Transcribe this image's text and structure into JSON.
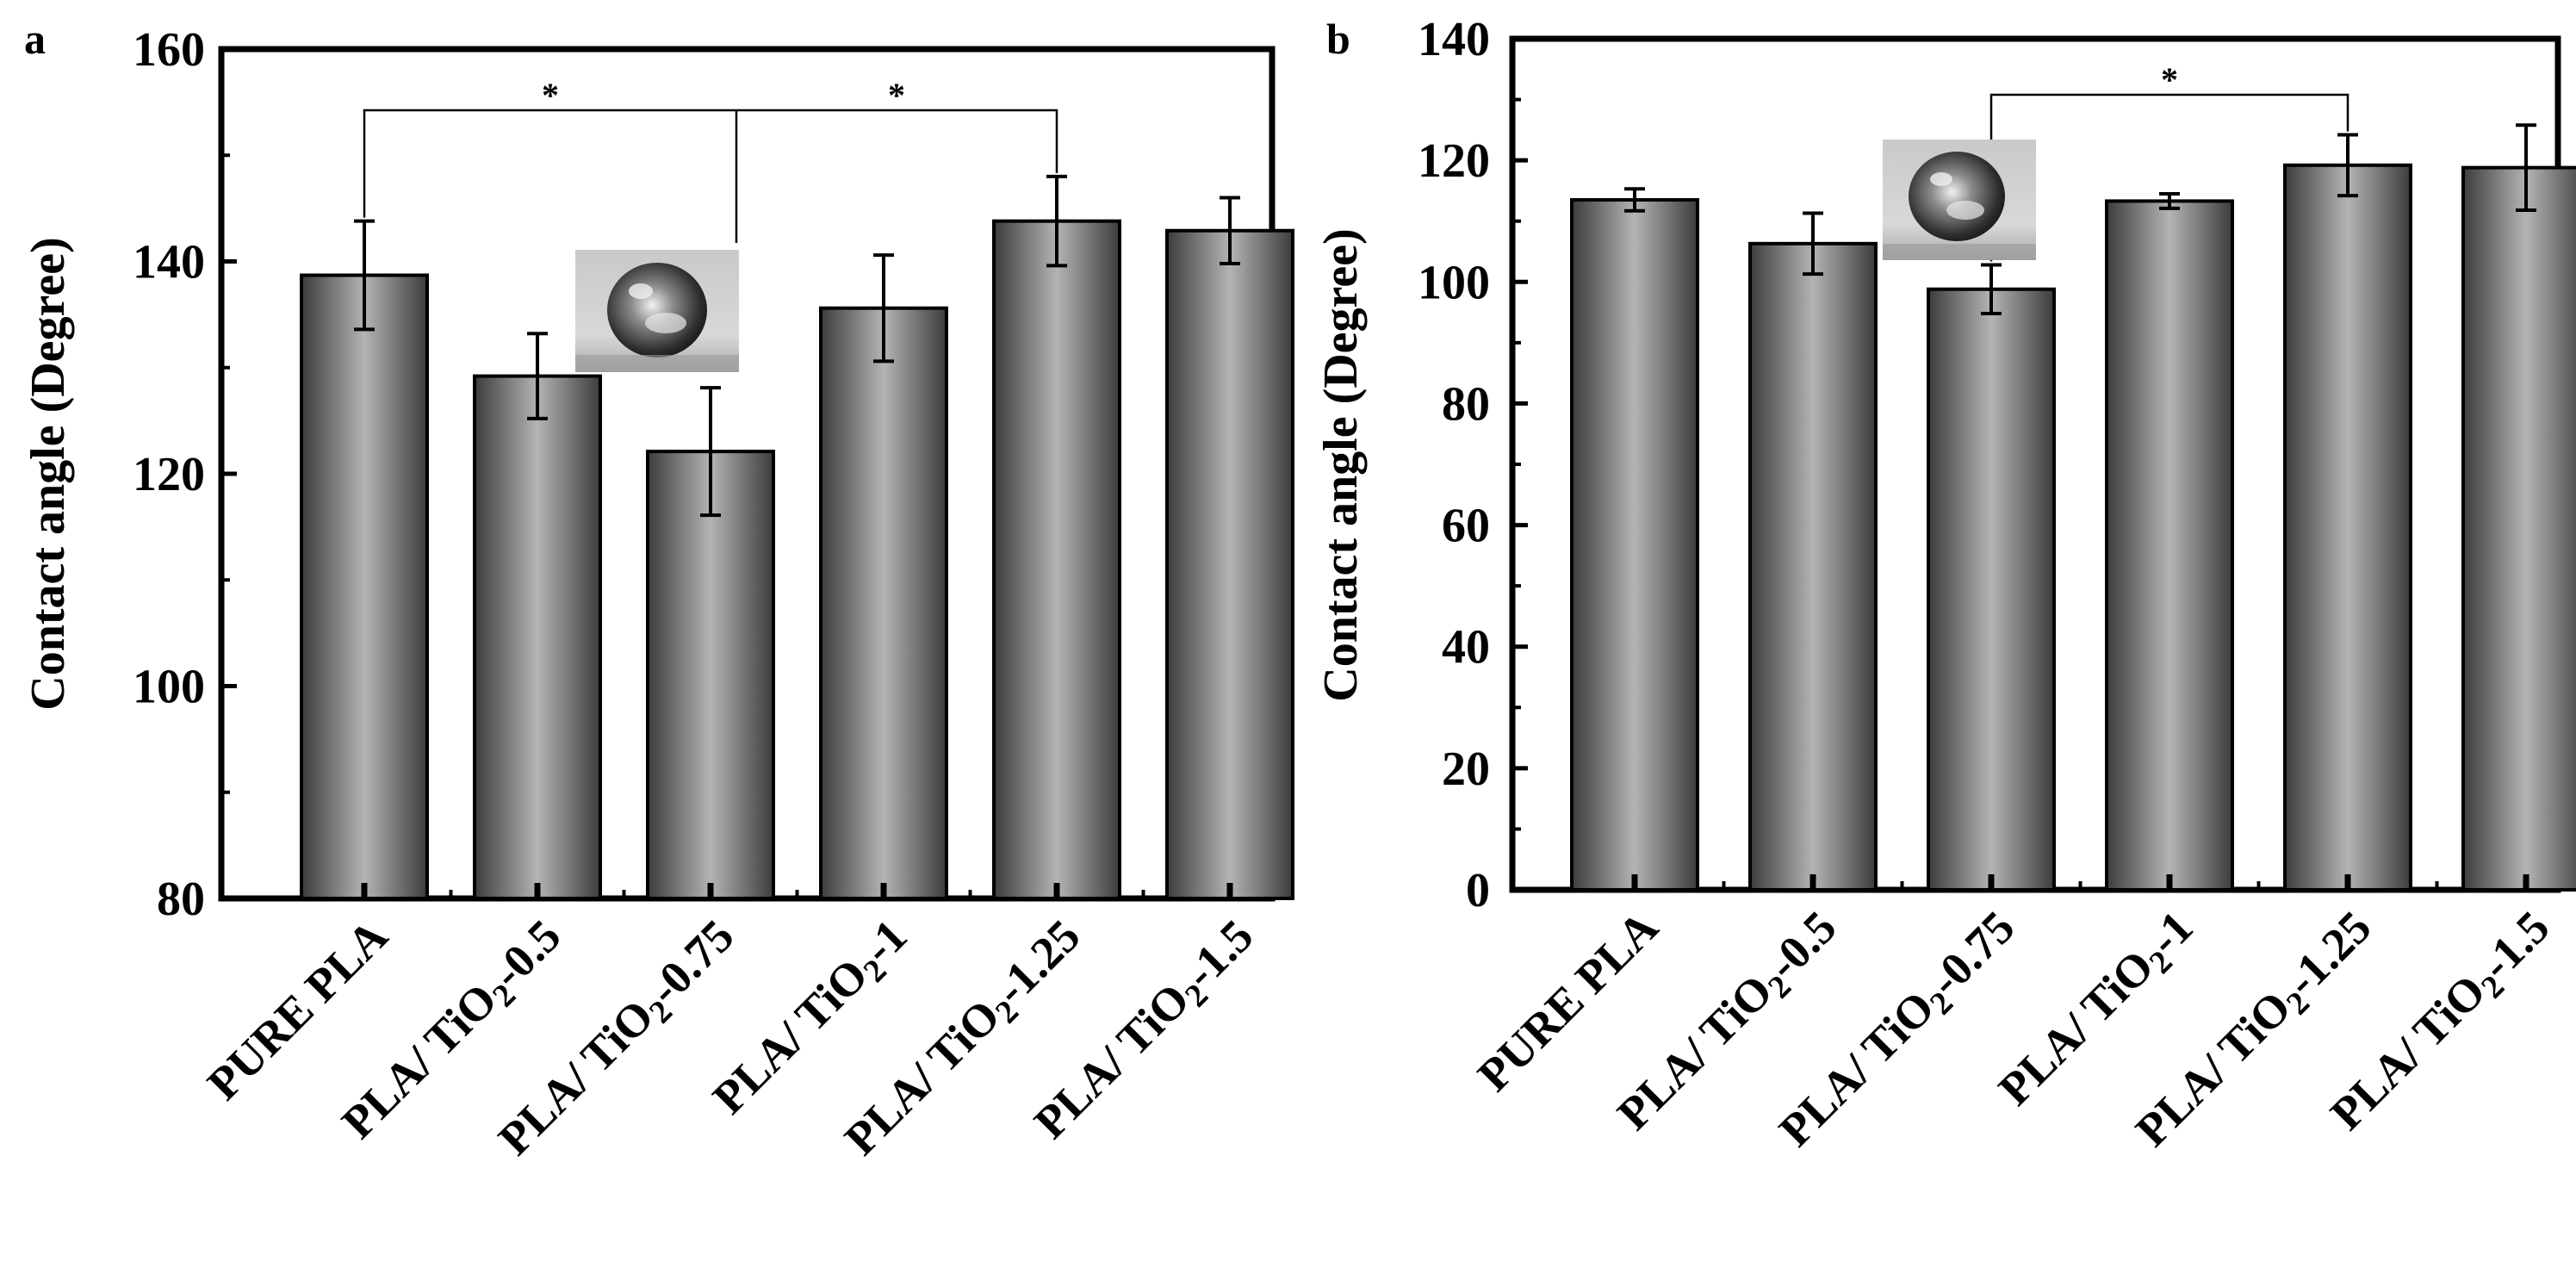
{
  "colors": {
    "bar_dark": "#3c3c3c",
    "bar_light": "#b4b4b4",
    "axis": "#000000",
    "background": "#ffffff"
  },
  "chart_data": [
    {
      "panel": "a",
      "type": "bar",
      "ylabel": "Contact  angle (Degree)",
      "xlabel": "",
      "ylim": [
        80,
        160
      ],
      "yticks": [
        80,
        100,
        120,
        140,
        160
      ],
      "categories": [
        "PURE PLA",
        "PLA/ TiO2-0.5",
        "PLA/ TiO2-0.75",
        "PLA/ TiO2-1",
        "PLA/ TiO2-1.25",
        "PLA/ TiO2-1.5"
      ],
      "series": [
        {
          "name": "Contact angle",
          "values": [
            138.7,
            129.2,
            122.1,
            135.6,
            143.8,
            142.9
          ],
          "errors": [
            5.1,
            4.0,
            6.0,
            5.0,
            4.2,
            3.1
          ]
        }
      ],
      "significance": [
        {
          "from": 0,
          "to": 4,
          "stars": [
            "*",
            "*"
          ]
        }
      ],
      "inset": "water droplet image"
    },
    {
      "panel": "b",
      "type": "bar",
      "ylabel": "Contact  angle (Degree)",
      "xlabel": "",
      "ylim": [
        0,
        140
      ],
      "yticks": [
        0,
        20,
        40,
        60,
        80,
        100,
        120,
        140
      ],
      "categories": [
        "PURE PLA",
        "PLA/ TiO2-0.5",
        "PLA/ TiO2-0.75",
        "PLA/ TiO2-1",
        "PLA/ TiO2-1.25",
        "PLA/ TiO2-1.5"
      ],
      "series": [
        {
          "name": "Contact angle",
          "values": [
            113.5,
            106.3,
            98.8,
            113.3,
            119.2,
            118.8
          ],
          "errors": [
            1.8,
            5.0,
            4.0,
            1.2,
            5.0,
            7.0
          ]
        }
      ],
      "significance": [
        {
          "from": 2,
          "to": 4,
          "stars": [
            "*"
          ]
        }
      ],
      "inset": "water droplet image"
    }
  ]
}
